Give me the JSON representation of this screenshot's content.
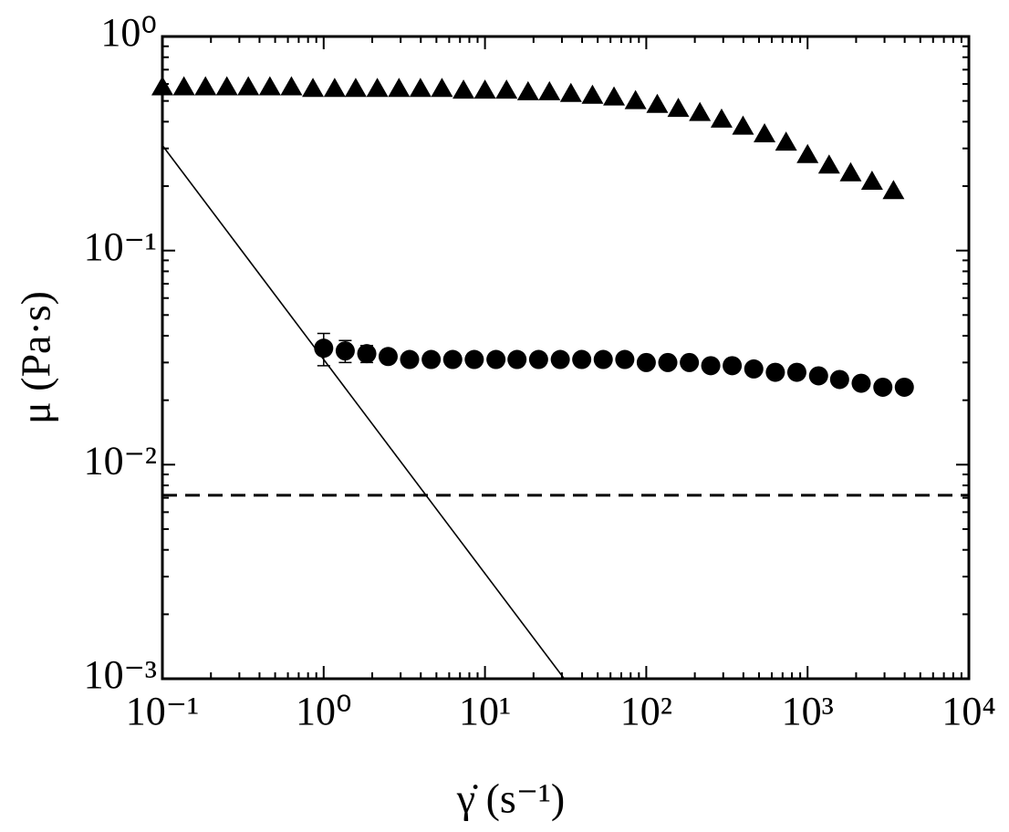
{
  "chart_data": {
    "type": "scatter",
    "x_label": "γ̇ (s⁻¹)",
    "y_label": "μ (Pa·s)",
    "xscale": "log",
    "yscale": "log",
    "xlim": [
      0.1,
      10000
    ],
    "ylim": [
      0.001,
      1
    ],
    "xticks": [
      {
        "value": 0.1,
        "label": "10⁻¹"
      },
      {
        "value": 1,
        "label": "10⁰"
      },
      {
        "value": 10,
        "label": "10¹"
      },
      {
        "value": 100,
        "label": "10²"
      },
      {
        "value": 1000,
        "label": "10³"
      },
      {
        "value": 10000,
        "label": "10⁴"
      }
    ],
    "yticks": [
      {
        "value": 0.001,
        "label": "10⁻³"
      },
      {
        "value": 0.01,
        "label": "10⁻²"
      },
      {
        "value": 0.1,
        "label": "10⁻¹"
      },
      {
        "value": 1,
        "label": "10⁰"
      }
    ],
    "minor_ticks": true,
    "series": [
      {
        "kind": "marker",
        "marker": "triangle",
        "color": "#000000",
        "x": [
          0.1,
          0.136,
          0.185,
          0.251,
          0.341,
          0.464,
          0.631,
          0.858,
          1.17,
          1.58,
          2.15,
          2.93,
          3.98,
          5.41,
          7.36,
          10,
          13.6,
          18.5,
          25.1,
          34.1,
          46.4,
          63.1,
          85.8,
          117,
          158,
          215,
          293,
          398,
          541,
          736,
          1000,
          1360,
          1850,
          2510,
          3410
        ],
        "values": [
          0.58,
          0.58,
          0.58,
          0.58,
          0.58,
          0.58,
          0.58,
          0.57,
          0.57,
          0.57,
          0.57,
          0.57,
          0.57,
          0.57,
          0.56,
          0.56,
          0.56,
          0.55,
          0.55,
          0.54,
          0.53,
          0.52,
          0.5,
          0.48,
          0.46,
          0.44,
          0.41,
          0.38,
          0.35,
          0.32,
          0.28,
          0.25,
          0.23,
          0.21,
          0.19
        ]
      },
      {
        "kind": "marker",
        "marker": "circle",
        "color": "#000000",
        "x": [
          1,
          1.36,
          1.85,
          2.51,
          3.41,
          4.64,
          6.31,
          8.58,
          11.7,
          15.8,
          21.5,
          29.3,
          39.8,
          54.1,
          73.6,
          100,
          136,
          185,
          251,
          341,
          464,
          631,
          858,
          1170,
          1580,
          2150,
          2930,
          3980
        ],
        "values": [
          0.035,
          0.034,
          0.033,
          0.032,
          0.031,
          0.031,
          0.031,
          0.031,
          0.031,
          0.031,
          0.031,
          0.031,
          0.031,
          0.031,
          0.031,
          0.03,
          0.03,
          0.03,
          0.029,
          0.029,
          0.028,
          0.027,
          0.027,
          0.026,
          0.025,
          0.024,
          0.023,
          0.023
        ],
        "errors": [
          0.006,
          0.004,
          0.003,
          0.001,
          0.001,
          0.001,
          0.001,
          0.001,
          0.001,
          0.001,
          0.001,
          0.001,
          0.001,
          0.001,
          0.001,
          0.001,
          0.001,
          0.001,
          0.001,
          0.001,
          0.001,
          0.001,
          0.001,
          0.001,
          0.001,
          0.001,
          0.001,
          0.001
        ]
      },
      {
        "kind": "line",
        "dash": false,
        "color": "#000000",
        "x": [
          0.1,
          31
        ],
        "values": [
          0.31,
          0.001
        ]
      },
      {
        "kind": "line",
        "dash": true,
        "color": "#000000",
        "x": [
          0.1,
          10000
        ],
        "values": [
          0.0072,
          0.0072
        ]
      }
    ]
  }
}
